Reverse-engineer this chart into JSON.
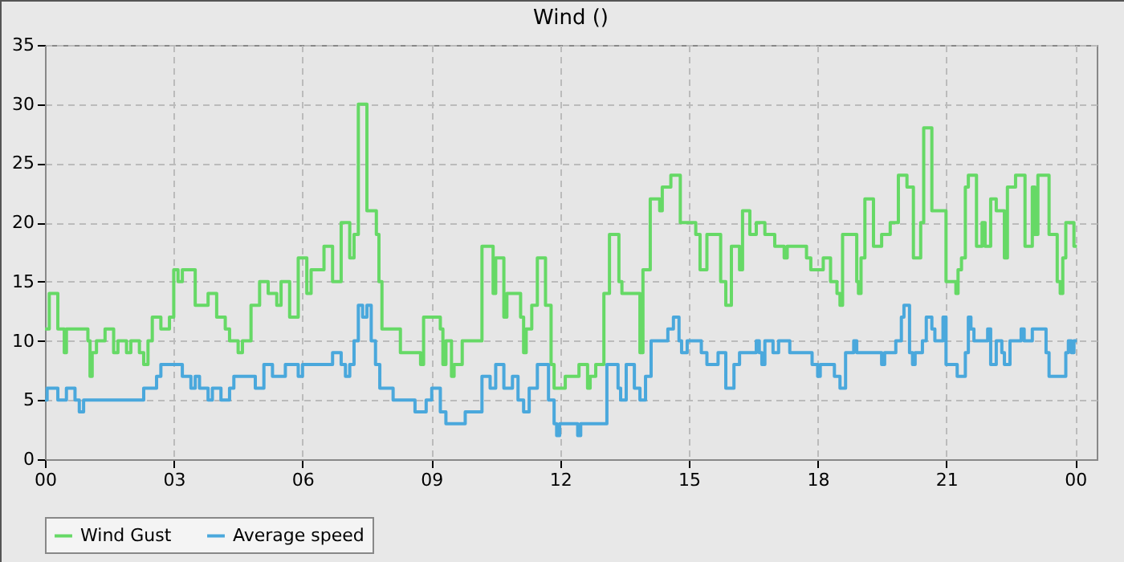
{
  "chart_data": {
    "type": "step",
    "title": "Wind ()",
    "xlim": [
      0,
      24.5
    ],
    "xticks": [
      {
        "value": 0,
        "label": "00"
      },
      {
        "value": 3,
        "label": "03"
      },
      {
        "value": 6,
        "label": "06"
      },
      {
        "value": 9,
        "label": "09"
      },
      {
        "value": 12,
        "label": "12"
      },
      {
        "value": 15,
        "label": "15"
      },
      {
        "value": 18,
        "label": "18"
      },
      {
        "value": 21,
        "label": "21"
      },
      {
        "value": 24,
        "label": "00"
      }
    ],
    "ylim": [
      0,
      35
    ],
    "yticks": [
      0,
      5,
      10,
      15,
      20,
      25,
      30,
      35
    ],
    "grid": true,
    "legend": "bottom",
    "series": [
      {
        "name": "Wind Gust",
        "color": "#66d966",
        "x": [
          0,
          0.1,
          0.3,
          0.45,
          0.5,
          1.0,
          1.05,
          1.1,
          1.2,
          1.4,
          1.6,
          1.7,
          1.9,
          2.0,
          2.2,
          2.3,
          2.4,
          2.5,
          2.7,
          2.9,
          3.0,
          3.1,
          3.2,
          3.5,
          3.8,
          4.0,
          4.2,
          4.3,
          4.5,
          4.6,
          4.8,
          5.0,
          5.2,
          5.4,
          5.5,
          5.7,
          5.9,
          6.1,
          6.2,
          6.5,
          6.7,
          6.9,
          7.1,
          7.2,
          7.3,
          7.5,
          7.72,
          7.78,
          7.85,
          8.28,
          8.75,
          8.82,
          9.21,
          9.27,
          9.34,
          9.47,
          9.53,
          9.72,
          10.18,
          10.44,
          10.5,
          10.69,
          10.76,
          11.08,
          11.15,
          11.21,
          11.34,
          11.47,
          11.66,
          11.79,
          11.86,
          12.12,
          12.44,
          12.64,
          12.7,
          12.83,
          13.02,
          13.15,
          13.37,
          13.44,
          13.86,
          13.93,
          14.1,
          14.32,
          14.38,
          14.58,
          14.8,
          15.16,
          15.26,
          15.42,
          15.74,
          15.86,
          15.99,
          16.18,
          16.25,
          16.42,
          16.57,
          16.77,
          17,
          17.22,
          17.29,
          17.74,
          17.84,
          18.13,
          18.3,
          18.45,
          18.52,
          18.58,
          18.91,
          18.95,
          19.01,
          19.1,
          19.3,
          19.49,
          19.69,
          19.88,
          20.08,
          20.23,
          20.4,
          20.47,
          20.66,
          20.99,
          21.22,
          21.27,
          21.35,
          21.44,
          21.51,
          21.7,
          21.83,
          21.9,
          22.03,
          22.16,
          22.35,
          22.42,
          22.61,
          22.83,
          23.0,
          23.06,
          23.13,
          23.39,
          23.58,
          23.65,
          23.71,
          23.78,
          23.97,
          24.04
        ],
        "values": [
          11,
          14,
          11,
          9,
          11,
          10,
          7,
          9,
          10,
          11,
          9,
          10,
          9,
          10,
          9,
          8,
          10,
          12,
          11,
          12,
          16,
          15,
          16,
          13,
          14,
          12,
          11,
          10,
          9,
          10,
          13,
          15,
          14,
          13,
          15,
          12,
          17,
          14,
          16,
          18,
          15,
          20,
          17,
          19,
          30,
          21,
          19,
          15,
          11,
          9,
          8,
          12,
          11,
          8,
          10,
          7,
          8,
          10,
          18,
          14,
          17,
          12,
          14,
          12,
          9,
          11,
          13,
          17,
          13,
          8,
          6,
          7,
          8,
          6,
          7,
          8,
          14,
          19,
          15,
          14,
          9,
          16,
          22,
          21,
          23,
          24,
          20,
          19,
          16,
          19,
          15,
          13,
          18,
          16,
          21,
          19,
          20,
          19,
          18,
          17,
          18,
          17,
          16,
          17,
          15,
          14,
          13,
          19,
          15,
          14,
          17,
          22,
          18,
          19,
          20,
          24,
          23,
          17,
          20,
          28,
          21,
          15,
          14,
          16,
          17,
          23,
          24,
          18,
          20,
          18,
          22,
          21,
          17,
          23,
          24,
          18,
          23,
          19,
          24,
          19,
          15,
          14,
          17,
          20,
          18,
          18
        ]
      },
      {
        "name": "Average speed",
        "color": "#4aa8dc",
        "x": [
          0,
          0.05,
          0.3,
          0.5,
          0.7,
          0.8,
          0.9,
          2.3,
          2.6,
          2.7,
          3.2,
          3.4,
          3.5,
          3.6,
          3.8,
          3.9,
          4.1,
          4.3,
          4.4,
          4.9,
          5.1,
          5.3,
          5.6,
          5.9,
          6.0,
          6.7,
          6.9,
          7.0,
          7.1,
          7.2,
          7.3,
          7.4,
          7.5,
          7.6,
          7.7,
          7.8,
          8.11,
          8.62,
          8.88,
          9.01,
          9.21,
          9.34,
          9.79,
          10.18,
          10.37,
          10.5,
          10.69,
          10.89,
          11.02,
          11.15,
          11.28,
          11.47,
          11.73,
          11.86,
          11.92,
          11.99,
          12.41,
          12.48,
          13.09,
          13.35,
          13.41,
          13.54,
          13.73,
          13.86,
          13.99,
          14.12,
          14.51,
          14.64,
          14.77,
          14.83,
          14.96,
          15.29,
          15.42,
          15.68,
          15.86,
          16.05,
          16.18,
          16.57,
          16.64,
          16.7,
          16.77,
          16.96,
          17.09,
          17.35,
          17.87,
          18,
          18.06,
          18.39,
          18.52,
          18.65,
          18.84,
          18.91,
          19.49,
          19.56,
          19.82,
          19.95,
          20.01,
          20.14,
          20.21,
          20.27,
          20.44,
          20.53,
          20.66,
          20.73,
          20.92,
          20.99,
          21.25,
          21.44,
          21.51,
          21.57,
          21.64,
          21.96,
          22.03,
          22.16,
          22.29,
          22.35,
          22.48,
          22.74,
          22.81,
          23.0,
          23.32,
          23.39,
          23.78,
          23.84,
          23.91,
          23.97,
          24.04
        ],
        "values": [
          5,
          6,
          5,
          6,
          5,
          4,
          5,
          6,
          7,
          8,
          7,
          6,
          7,
          6,
          5,
          6,
          5,
          6,
          7,
          6,
          8,
          7,
          8,
          7,
          8,
          9,
          8,
          7,
          8,
          10,
          13,
          12,
          13,
          10,
          8,
          6,
          5,
          4,
          5,
          6,
          4,
          3,
          4,
          7,
          6,
          8,
          6,
          7,
          5,
          4,
          6,
          8,
          5,
          3,
          2,
          3,
          2,
          3,
          8,
          6,
          5,
          8,
          6,
          5,
          7,
          10,
          11,
          12,
          10,
          9,
          10,
          9,
          8,
          9,
          6,
          8,
          9,
          10,
          9,
          8,
          10,
          9,
          10,
          9,
          8,
          7,
          8,
          7,
          6,
          9,
          10,
          9,
          8,
          9,
          10,
          12,
          13,
          9,
          8,
          9,
          10,
          12,
          11,
          10,
          12,
          8,
          7,
          9,
          12,
          11,
          10,
          11,
          8,
          10,
          9,
          8,
          10,
          11,
          10,
          11,
          9,
          7,
          9,
          10,
          9,
          10,
          10
        ]
      }
    ]
  }
}
